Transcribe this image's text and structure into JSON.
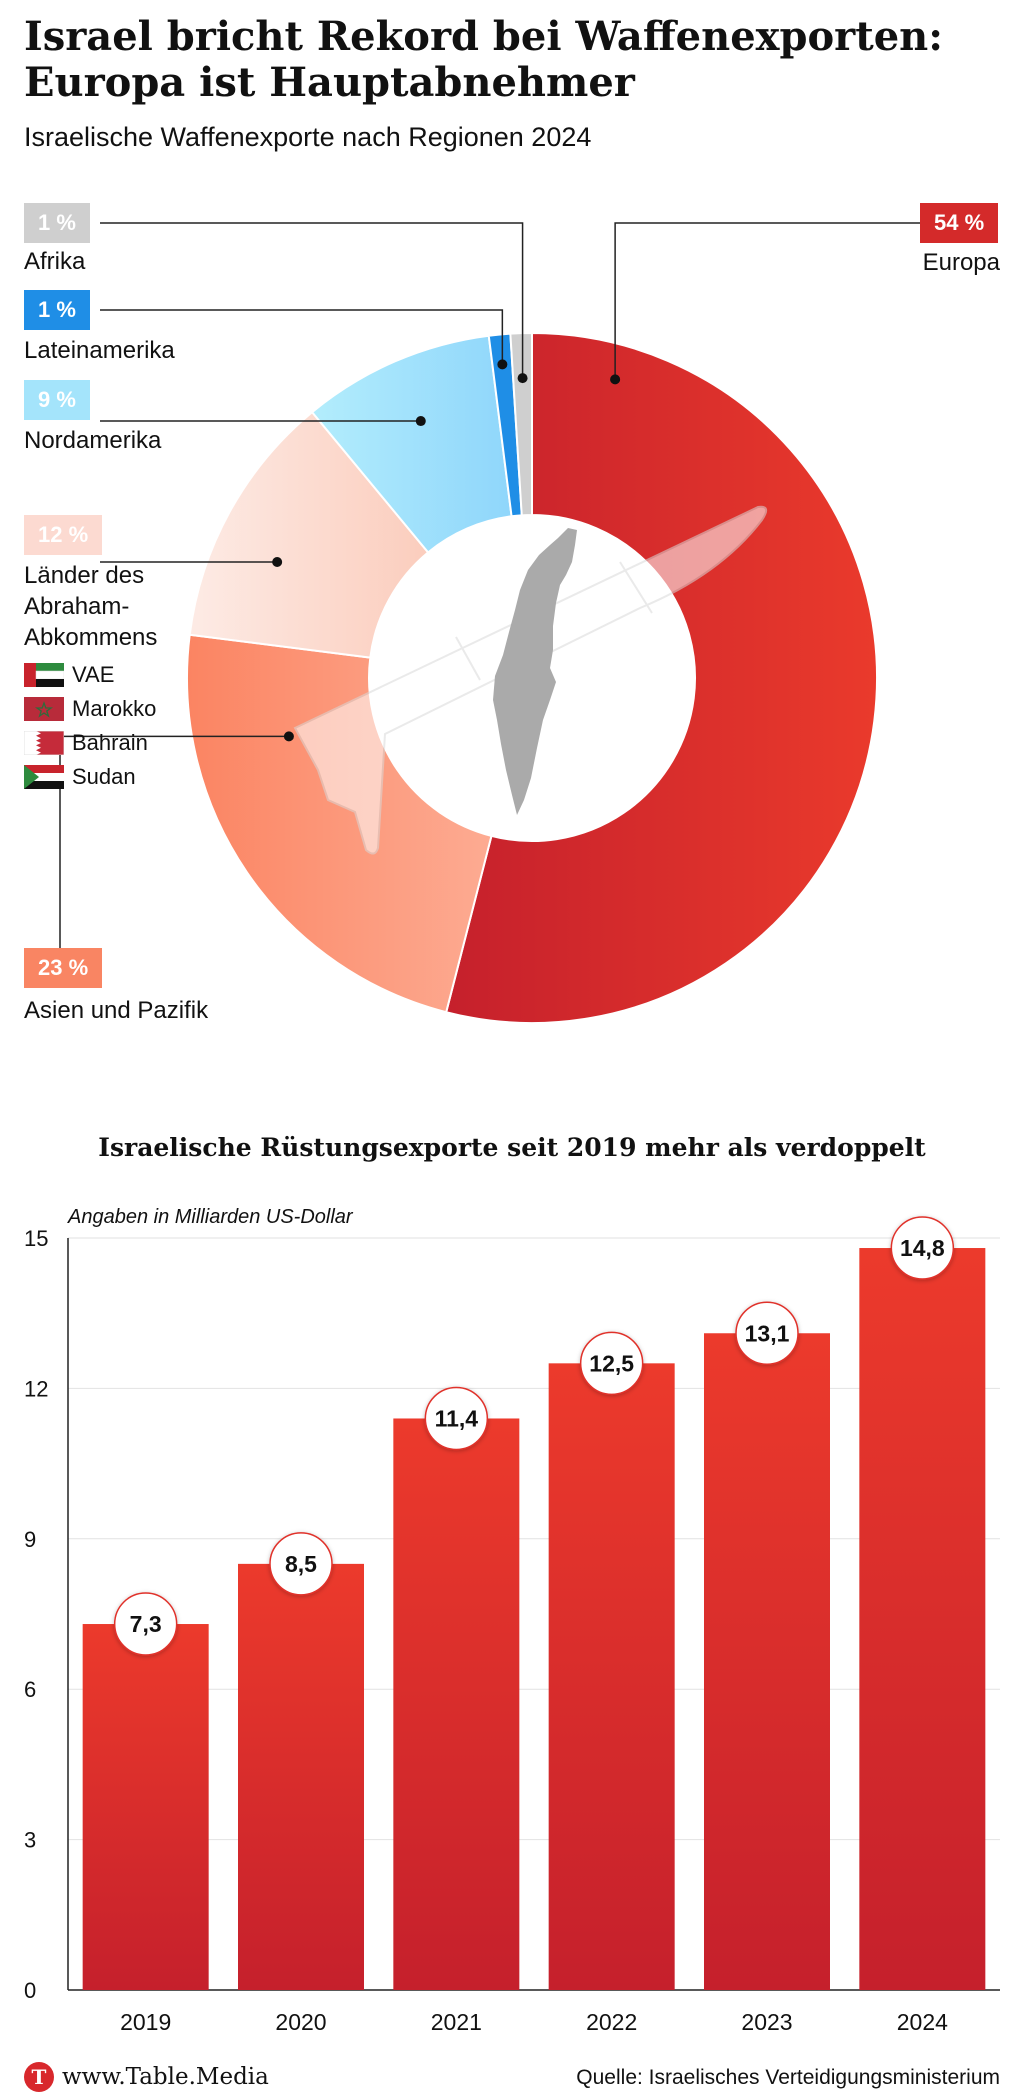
{
  "header": {
    "title": "Israel bricht Rekord bei Waffenexporten: Europa ist Hauptabnehmer",
    "subtitle": "Israelische Waffenexporte nach Regionen 2024"
  },
  "donut": {
    "regions": [
      {
        "key": "europa",
        "label": "Europa",
        "pct_label": "54 %",
        "value": 54,
        "color": "#d42a2a"
      },
      {
        "key": "asien",
        "label": "Asien und Pazifik",
        "pct_label": "23 %",
        "value": 23,
        "color": "#f98563"
      },
      {
        "key": "abraham",
        "label": "Länder des Abraham-Abkommens",
        "pct_label": "12 %",
        "value": 12,
        "color": "#fcdad1"
      },
      {
        "key": "nordamerika",
        "label": "Nordamerika",
        "pct_label": "9 %",
        "value": 9,
        "color": "#a4e4fb"
      },
      {
        "key": "lateinamerika",
        "label": "Lateinamerika",
        "pct_label": "1 %",
        "value": 1,
        "color": "#1f8ee6"
      },
      {
        "key": "afrika",
        "label": "Afrika",
        "pct_label": "1 %",
        "value": 1,
        "color": "#cfcfcf"
      }
    ],
    "abraham_lines": [
      "Länder des",
      "Abraham-",
      "Abkommens"
    ],
    "flags": [
      {
        "key": "vae",
        "label": "VAE"
      },
      {
        "key": "marokko",
        "label": "Marokko"
      },
      {
        "key": "bahrain",
        "label": "Bahrain"
      },
      {
        "key": "sudan",
        "label": "Sudan"
      }
    ]
  },
  "chart_data": [
    {
      "type": "pie",
      "title": "Israelische Waffenexporte nach Regionen 2024",
      "labels": [
        "Europa",
        "Asien und Pazifik",
        "Länder des Abraham-Abkommens",
        "Nordamerika",
        "Lateinamerika",
        "Afrika"
      ],
      "values": [
        54,
        23,
        12,
        9,
        1,
        1
      ],
      "unit": "%"
    },
    {
      "type": "bar",
      "title": "Israelische Rüstungsexporte seit 2019 mehr als verdoppelt",
      "subtitle": "Angaben in Milliarden US-Dollar",
      "categories": [
        "2019",
        "2020",
        "2021",
        "2022",
        "2023",
        "2024"
      ],
      "values": [
        7.3,
        8.5,
        11.4,
        12.5,
        13.1,
        14.8
      ],
      "value_labels": [
        "7,3",
        "8,5",
        "11,4",
        "12,5",
        "13,1",
        "14,8"
      ],
      "ylim": [
        0,
        15
      ],
      "yticks": [
        0,
        3,
        6,
        9,
        12,
        15
      ],
      "grid": true,
      "bar_color": "#e0302a"
    }
  ],
  "bar_chart": {
    "title": "Israelische Rüstungsexporte seit 2019 mehr als verdoppelt",
    "unit_note": "Angaben in Milliarden US-Dollar"
  },
  "footer": {
    "logo_letter": "T",
    "url": "www.Table.Media",
    "source": "Quelle: Israelisches Verteidigungsministerium"
  }
}
